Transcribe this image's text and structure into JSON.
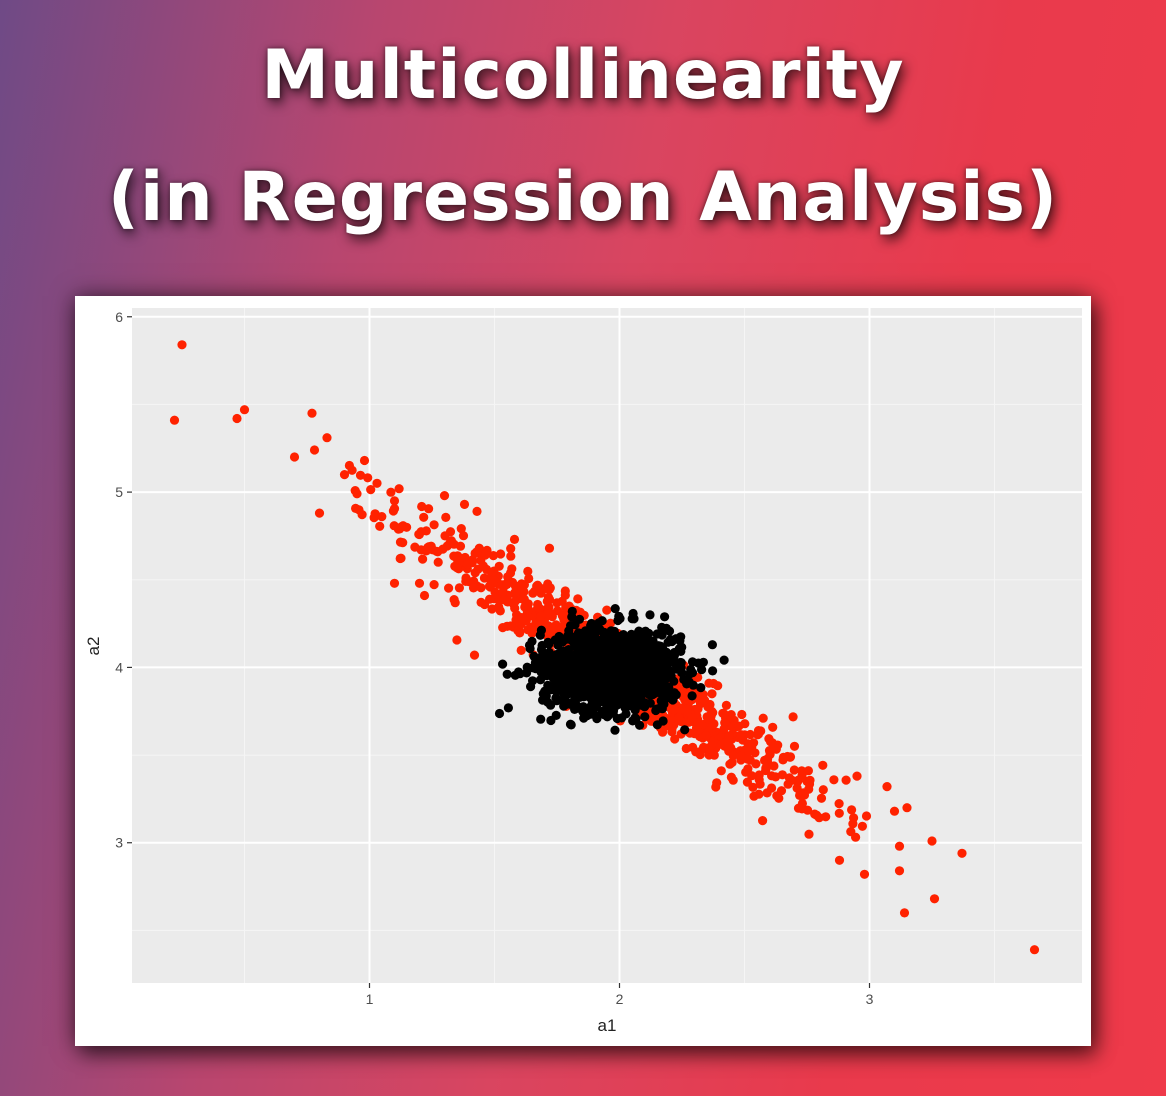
{
  "title_line1": "Multicollinearity",
  "title_line2": "(in Regression Analysis)",
  "chart_data": {
    "type": "scatter",
    "title": "",
    "xlabel": "a1",
    "ylabel": "a2",
    "xlim": [
      0.05,
      3.85
    ],
    "ylim": [
      2.2,
      6.05
    ],
    "xticks": [
      1,
      2,
      3
    ],
    "yticks": [
      3,
      4,
      5,
      6
    ],
    "grid": true,
    "background": "#ebebeb",
    "series": [
      {
        "color": "#ff2200",
        "points": [
          [
            0.25,
            5.84
          ],
          [
            0.22,
            5.41
          ],
          [
            0.47,
            5.42
          ],
          [
            0.5,
            5.47
          ],
          [
            0.77,
            5.45
          ],
          [
            0.7,
            5.2
          ],
          [
            0.78,
            5.24
          ],
          [
            0.83,
            5.31
          ],
          [
            0.8,
            4.88
          ],
          [
            0.9,
            5.1
          ],
          [
            0.95,
            4.99
          ],
          [
            0.98,
            5.18
          ],
          [
            1.03,
            5.05
          ],
          [
            1.1,
            4.95
          ],
          [
            1.1,
            4.48
          ],
          [
            1.2,
            4.48
          ],
          [
            1.22,
            4.41
          ],
          [
            1.3,
            4.98
          ],
          [
            1.38,
            4.93
          ],
          [
            1.43,
            4.89
          ],
          [
            1.42,
            4.07
          ],
          [
            1.58,
            4.73
          ],
          [
            1.72,
            4.68
          ],
          [
            2.75,
            3.35
          ],
          [
            2.7,
            3.55
          ],
          [
            2.95,
            3.38
          ],
          [
            2.88,
            2.9
          ],
          [
            2.98,
            2.82
          ],
          [
            3.07,
            3.32
          ],
          [
            3.1,
            3.18
          ],
          [
            3.12,
            2.98
          ],
          [
            3.12,
            2.84
          ],
          [
            3.15,
            3.2
          ],
          [
            3.14,
            2.6
          ],
          [
            3.25,
            3.01
          ],
          [
            3.26,
            2.68
          ],
          [
            3.37,
            2.94
          ],
          [
            3.66,
            2.39
          ]
        ]
      },
      {
        "color": "#000000",
        "points": []
      }
    ]
  }
}
